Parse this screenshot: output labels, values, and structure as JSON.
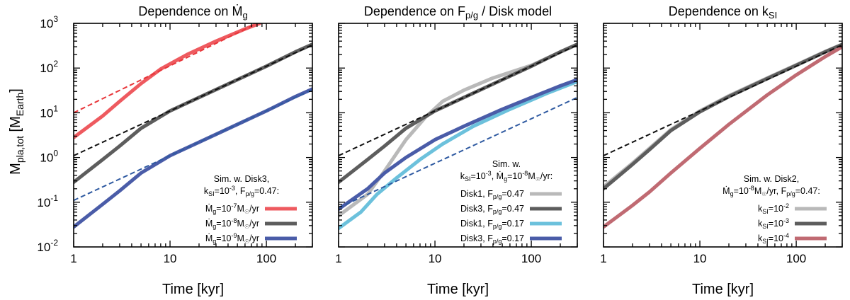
{
  "chart_data": {
    "type": "line",
    "ylabel": "Mpla,tot [MEarth]",
    "xlabel": "Time [kyr]",
    "x_scale": "log",
    "y_scale": "log",
    "xlim": [
      1,
      300
    ],
    "ylim": [
      0.01,
      1000
    ],
    "x_ticks": [
      {
        "value": 1,
        "label": "1"
      },
      {
        "value": 10,
        "label": "10"
      },
      {
        "value": 100,
        "label": "100"
      }
    ],
    "y_ticks": [
      {
        "value": 0.01,
        "base": "10",
        "exp": "-2"
      },
      {
        "value": 0.1,
        "base": "10",
        "exp": "-1"
      },
      {
        "value": 1,
        "base": "10",
        "exp": "0"
      },
      {
        "value": 10,
        "base": "10",
        "exp": "1"
      },
      {
        "value": 100,
        "base": "10",
        "exp": "2"
      },
      {
        "value": 1000,
        "base": "10",
        "exp": "3"
      }
    ],
    "colors": {
      "red": "#ee5a5f",
      "dark_gray": "#5d5d5d",
      "blue": "#4a5ca8",
      "light_gray": "#b9b9b9",
      "light_blue": "#6cc1dc",
      "rose": "#c06a72",
      "red_dashed": "#e8363a",
      "black_dashed": "#111111",
      "blue_dashed": "#2f5aa1"
    },
    "panels": [
      {
        "title": "Dependence on Ṁg",
        "legend_header": [
          "Sim. w. Disk3,",
          "kSI=10-3, Fp/g=0.47:"
        ],
        "series": [
          {
            "name": "Ṁg=10-7M☉/yr",
            "color_key": "red",
            "style": "solid",
            "legend": true,
            "x": [
              1,
              2,
              3,
              5,
              8,
              15,
              30,
              60,
              85
            ],
            "y": [
              2.8,
              8.5,
              18,
              45,
              95,
              200,
              400,
              750,
              1000
            ]
          },
          {
            "name": "Ṁg=10-8M☉/yr",
            "color_key": "dark_gray",
            "style": "solid",
            "legend": true,
            "x": [
              1,
              2,
              3,
              5,
              10,
              20,
              50,
              100,
              200,
              300
            ],
            "y": [
              0.28,
              0.9,
              1.8,
              4.5,
              11,
              22,
              55,
              110,
              230,
              340
            ]
          },
          {
            "name": "Ṁg=10-9M☉/yr",
            "color_key": "blue",
            "style": "solid",
            "legend": true,
            "x": [
              1,
              2,
              3,
              5,
              10,
              20,
              50,
              100,
              200,
              300
            ],
            "y": [
              0.028,
              0.09,
              0.18,
              0.45,
              1.1,
              2.2,
              5.5,
              11,
              23,
              34
            ]
          },
          {
            "name": "Ṁg=10-7 analytic",
            "color_key": "red_dashed",
            "style": "dashed",
            "legend": false,
            "x": [
              1,
              80
            ],
            "y": [
              10,
              1000
            ]
          },
          {
            "name": "Ṁg=10-8 analytic",
            "color_key": "black_dashed",
            "style": "dashed",
            "legend": false,
            "x": [
              1,
              300
            ],
            "y": [
              1.1,
              330
            ]
          },
          {
            "name": "Ṁg=10-9 analytic",
            "color_key": "blue_dashed",
            "style": "dashed",
            "legend": false,
            "x": [
              1,
              300
            ],
            "y": [
              0.11,
              33
            ]
          }
        ]
      },
      {
        "title": "Dependence on Fp/g / Disk model",
        "legend_header": [
          "Sim. w.",
          "kSI=10-3, Ṁg=10-8M☉/yr:"
        ],
        "series": [
          {
            "name": "Disk1, Fp/g=0.47",
            "color_key": "light_gray",
            "style": "solid",
            "legend": true,
            "x": [
              1,
              2,
              3,
              5,
              8,
              12,
              20,
              40,
              100,
              300
            ],
            "y": [
              0.05,
              0.15,
              0.5,
              2.5,
              8,
              18,
              32,
              60,
              115,
              340
            ]
          },
          {
            "name": "Disk3, Fp/g=0.47",
            "color_key": "dark_gray",
            "style": "solid",
            "legend": true,
            "x": [
              1,
              2,
              3,
              5,
              10,
              20,
              50,
              100,
              200,
              300
            ],
            "y": [
              0.28,
              0.9,
              1.8,
              4.5,
              11,
              22,
              55,
              110,
              230,
              340
            ]
          },
          {
            "name": "Disk1, Fp/g=0.17",
            "color_key": "light_blue",
            "style": "solid",
            "legend": true,
            "x": [
              1,
              1.7,
              2.5,
              4,
              7,
              12,
              25,
              60,
              150,
              300
            ],
            "y": [
              0.026,
              0.06,
              0.15,
              0.35,
              0.9,
              2,
              5,
              12,
              28,
              50
            ]
          },
          {
            "name": "Disk3, Fp/g=0.17",
            "color_key": "blue",
            "style": "solid",
            "legend": true,
            "x": [
              1,
              2,
              3,
              5,
              10,
              20,
              50,
              100,
              200,
              300
            ],
            "y": [
              0.07,
              0.2,
              0.45,
              1,
              2.5,
              5,
              12,
              22,
              40,
              55
            ]
          },
          {
            "name": "Fp/g=0.47 analytic",
            "color_key": "black_dashed",
            "style": "dashed",
            "legend": false,
            "x": [
              1,
              300
            ],
            "y": [
              1.1,
              330
            ]
          },
          {
            "name": "Fp/g=0.17 analytic",
            "color_key": "blue_dashed",
            "style": "dashed",
            "legend": false,
            "x": [
              1,
              300
            ],
            "y": [
              0.075,
              22
            ]
          }
        ]
      },
      {
        "title": "Dependence on kSI",
        "legend_header": [
          "Sim. w. Disk2,",
          "Ṁg=10-8M☉/yr, Fp/g=0.47:"
        ],
        "series": [
          {
            "name": "kSI=10-2",
            "color_key": "light_gray",
            "style": "solid",
            "legend": true,
            "x": [
              1,
              2,
              3,
              5,
              10,
              20,
              50,
              100,
              200,
              300
            ],
            "y": [
              0.22,
              0.75,
              1.6,
              4.2,
              11,
              24,
              60,
              118,
              235,
              340
            ]
          },
          {
            "name": "kSI=10-3",
            "color_key": "dark_gray",
            "style": "solid",
            "legend": true,
            "x": [
              1,
              2,
              3,
              5,
              10,
              20,
              50,
              100,
              200,
              300
            ],
            "y": [
              0.2,
              0.7,
              1.5,
              4,
              10.5,
              23,
              58,
              115,
              230,
              335
            ]
          },
          {
            "name": "kSI=10-4",
            "color_key": "rose",
            "style": "solid",
            "legend": true,
            "x": [
              1,
              2,
              3,
              5,
              10,
              20,
              50,
              100,
              200,
              300
            ],
            "y": [
              0.028,
              0.085,
              0.17,
              0.45,
              1.6,
              5.5,
              25,
              70,
              180,
              300
            ]
          },
          {
            "name": "analytic",
            "color_key": "black_dashed",
            "style": "dashed",
            "legend": false,
            "x": [
              1,
              300
            ],
            "y": [
              1.1,
              330
            ]
          }
        ]
      }
    ]
  }
}
